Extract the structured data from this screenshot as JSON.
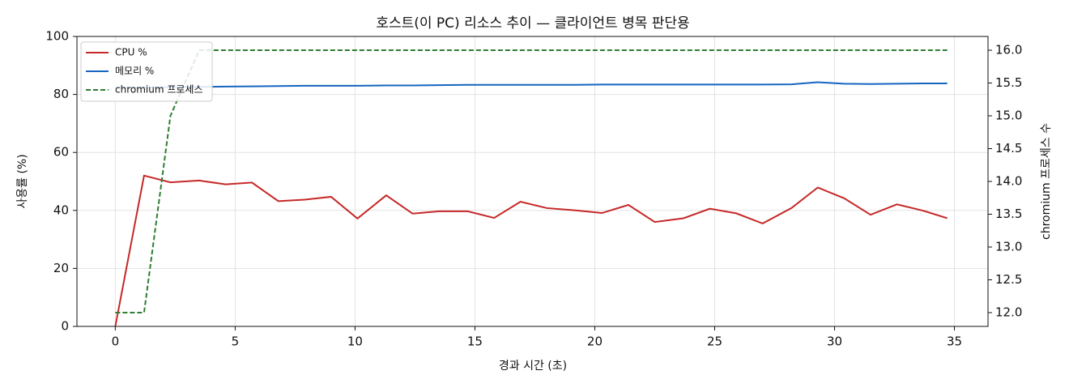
{
  "chart_data": {
    "type": "line",
    "title": "호스트(이 PC) 리소스 추이 — 클라이언트 병목 판단용",
    "xlabel": "경과 시간 (초)",
    "ylabel": "사용률 (%)",
    "y2label": "chromium 프로세스 수",
    "x": [
      0,
      1.2,
      2.3,
      3.5,
      4.6,
      5.7,
      6.8,
      7.9,
      9.0,
      10.1,
      11.3,
      12.4,
      13.5,
      14.7,
      15.8,
      16.9,
      18.0,
      19.2,
      20.3,
      21.4,
      22.5,
      23.7,
      24.8,
      25.9,
      27.0,
      28.2,
      29.3,
      30.4,
      31.5,
      32.6,
      33.7,
      34.7
    ],
    "series": [
      {
        "name": "CPU %",
        "color": "#c62828",
        "linestyle": "solid",
        "values": [
          0,
          52,
          49.7,
          50.3,
          49,
          49.6,
          43.2,
          43.7,
          44.7,
          37.2,
          45.2,
          38.9,
          39.7,
          39.7,
          37.4,
          43,
          40.8,
          40,
          39.1,
          41.9,
          36,
          37.3,
          40.6,
          39,
          35.5,
          40.8,
          47.9,
          44.2,
          38.5,
          42.1,
          39.9,
          37.3
        ]
      },
      {
        "name": "메모리 %",
        "color": "#1565c0",
        "linestyle": "solid",
        "values": [
          82.3,
          82.4,
          82.5,
          82.6,
          82.7,
          82.8,
          82.9,
          83,
          83,
          83,
          83.1,
          83.1,
          83.2,
          83.3,
          83.3,
          83.3,
          83.3,
          83.3,
          83.4,
          83.4,
          83.4,
          83.4,
          83.4,
          83.4,
          83.4,
          83.5,
          84.2,
          83.7,
          83.6,
          83.7,
          83.8,
          83.8
        ]
      },
      {
        "name": "chromium 프로세스",
        "color": "#2e7d32",
        "linestyle": "dashed",
        "axis": "y2",
        "values": [
          12,
          12,
          15,
          16,
          16,
          16,
          16,
          16,
          16,
          16,
          16,
          16,
          16,
          16,
          16,
          16,
          16,
          16,
          16,
          16,
          16,
          16,
          16,
          16,
          16,
          16,
          16,
          16,
          16,
          16,
          16,
          16
        ]
      }
    ],
    "xlim": [
      -1.6,
      36.4
    ],
    "xticks": [
      0,
      5,
      10,
      15,
      20,
      25,
      30,
      35
    ],
    "ylim": [
      0,
      100
    ],
    "yticks": [
      0,
      20,
      40,
      60,
      80,
      100
    ],
    "y2lim": [
      11.79,
      16.21
    ],
    "y2ticks": [
      {
        "value": 12,
        "label": "12.0"
      },
      12.5,
      {
        "value": 13,
        "label": "13.0"
      },
      13.5,
      {
        "value": 14,
        "label": "14.0"
      },
      14.5,
      {
        "value": 15,
        "label": "15.0"
      },
      15.5,
      {
        "value": 16,
        "label": "16.0"
      }
    ],
    "grid": true,
    "legend": "upper-left"
  }
}
